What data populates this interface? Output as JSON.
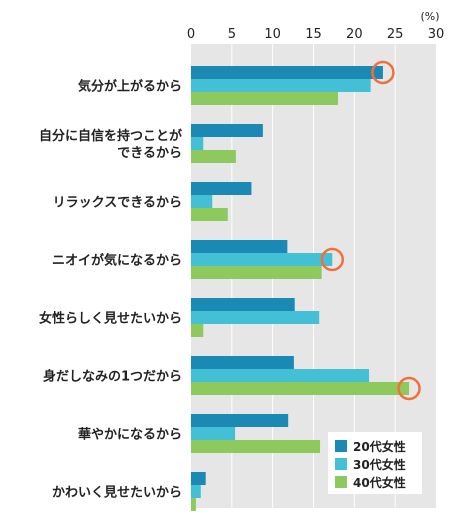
{
  "chart_data": {
    "type": "bar",
    "orientation": "horizontal",
    "unit_label": "(%)",
    "x_ticks": [
      "0",
      "5",
      "10",
      "15",
      "20",
      "25",
      "30"
    ],
    "xlim": [
      0,
      30
    ],
    "grid": true,
    "legend_position": "bottom-right",
    "categories": [
      [
        "気分が上がるから"
      ],
      [
        "自分に自信を持つことが",
        "できるから"
      ],
      [
        "リラックスできるから"
      ],
      [
        "ニオイが気になるから"
      ],
      [
        "女性らしく見せたいから"
      ],
      [
        "身だしなみの1つだから"
      ],
      [
        "華やかになるから"
      ],
      [
        "かわいく見せたいから"
      ]
    ],
    "series": [
      {
        "name": "20代女性",
        "color": "#1a8ab5",
        "values": [
          23.5,
          8.8,
          7.4,
          11.8,
          12.7,
          12.6,
          11.9,
          1.8
        ]
      },
      {
        "name": "30代女性",
        "color": "#43c0d6",
        "values": [
          22.0,
          1.5,
          2.6,
          17.3,
          15.7,
          21.8,
          5.4,
          1.2
        ]
      },
      {
        "name": "40代女性",
        "color": "#8dc95c",
        "values": [
          18.0,
          5.5,
          4.5,
          16.0,
          1.5,
          26.7,
          15.8,
          0.6
        ]
      }
    ],
    "highlight_color": "#f26f3b",
    "highlights": [
      {
        "category": 0,
        "series": 0
      },
      {
        "category": 3,
        "series": 1
      },
      {
        "category": 5,
        "series": 2
      }
    ]
  }
}
